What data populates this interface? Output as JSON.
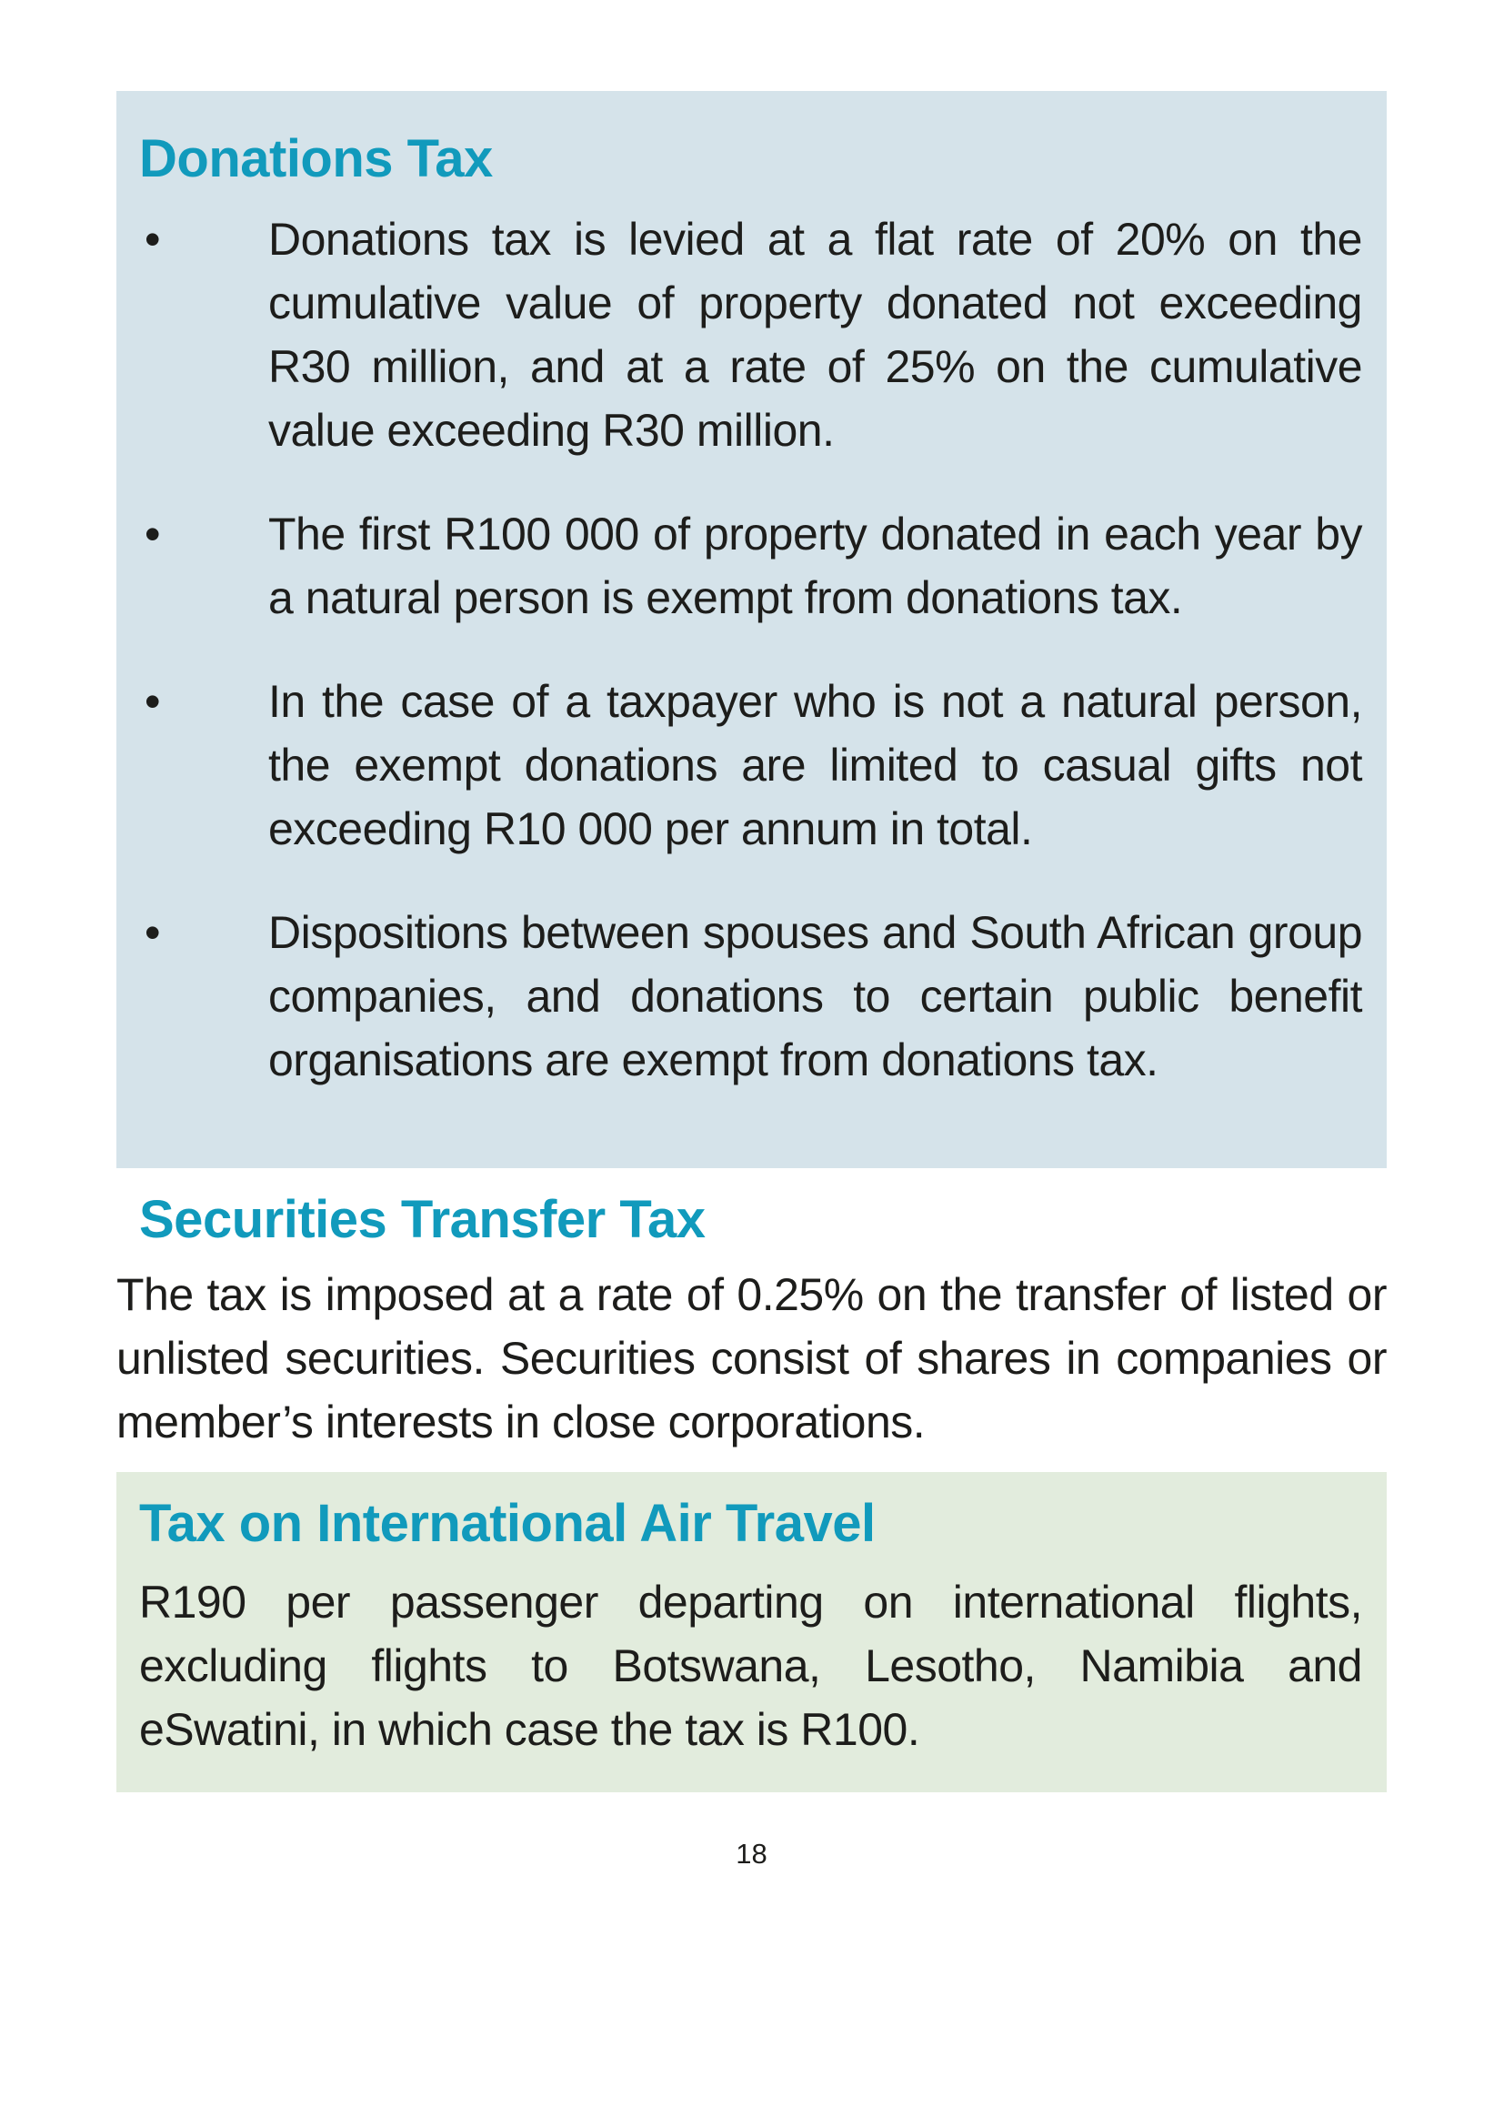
{
  "colors": {
    "accent_teal": "#119abc",
    "blue_box_bg": "#d5e3ea",
    "green_box_bg": "#e2ecdd",
    "body_text": "#1d1d1b"
  },
  "donations_tax": {
    "heading": "Donations Tax",
    "bullet_glyph": "•",
    "bullets": [
      "Donations tax is levied at a flat rate of 20% on the cumulative value of property donated not exceeding R30 million, and at a rate of 25% on the cumulative value exceeding R30 million.",
      "The first R100 000 of property donated in each year by a natural person is exempt from donations tax.",
      "In the case of a taxpayer who is not a natural person, the exempt donations are limited to casual gifts not exceeding R10 000 per annum in total.",
      "Dispositions between spouses and South African group companies, and donations to certain public benefit organisations are exempt from donations tax."
    ]
  },
  "securities_transfer_tax": {
    "heading": "Securities Transfer Tax",
    "body": "The tax is imposed at a rate of 0.25% on the transfer of listed or unlisted securities. Securities consist of shares in companies or member’s interests in close corporations."
  },
  "air_travel_tax": {
    "heading": "Tax on International Air Travel",
    "body": "R190 per passenger departing on international flights, excluding flights to Botswana, Lesotho, Namibia and eSwatini, in which case the tax is R100."
  },
  "page": {
    "number": "18"
  }
}
